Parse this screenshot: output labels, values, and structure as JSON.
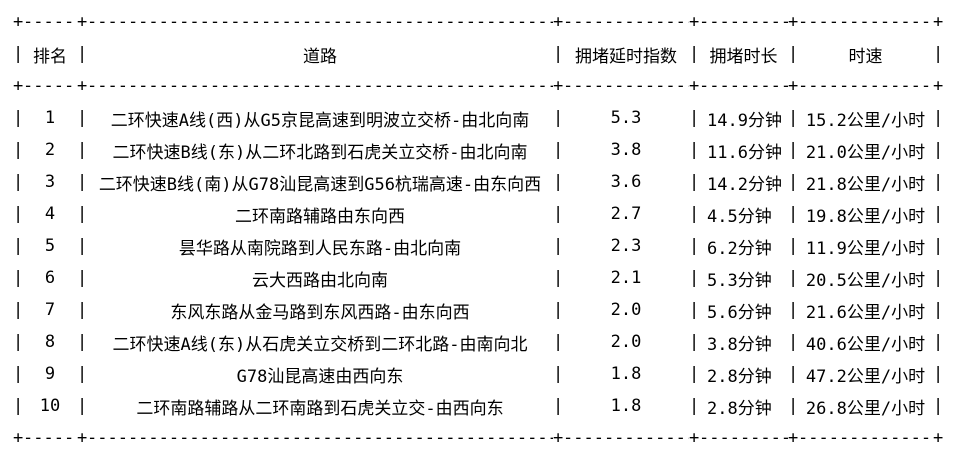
{
  "page": {
    "background": "#ffffff",
    "text_color": "#000000"
  },
  "ascii": {
    "pipe": "|",
    "cross": "+",
    "dash_fill": "------------------------------------------------------------"
  },
  "table": {
    "headers": {
      "rank": "排名",
      "road": "道路",
      "index": "拥堵延时指数",
      "duration": "拥堵时长",
      "speed": "时速"
    },
    "rows": [
      {
        "rank": "1",
        "road": "二环快速A线(西)从G5京昆高速到明波立交桥-由北向南",
        "index": "5.3",
        "duration": "14.9分钟",
        "speed": "15.2公里/小时"
      },
      {
        "rank": "2",
        "road": "二环快速B线(东)从二环北路到石虎关立交桥-由北向南",
        "index": "3.8",
        "duration": "11.6分钟",
        "speed": "21.0公里/小时"
      },
      {
        "rank": "3",
        "road": "二环快速B线(南)从G78汕昆高速到G56杭瑞高速-由东向西",
        "index": "3.6",
        "duration": "14.2分钟",
        "speed": "21.8公里/小时"
      },
      {
        "rank": "4",
        "road": "二环南路辅路由东向西",
        "index": "2.7",
        "duration": "4.5分钟",
        "speed": "19.8公里/小时"
      },
      {
        "rank": "5",
        "road": "昙华路从南院路到人民东路-由北向南",
        "index": "2.3",
        "duration": "6.2分钟",
        "speed": "11.9公里/小时"
      },
      {
        "rank": "6",
        "road": "云大西路由北向南",
        "index": "2.1",
        "duration": "5.3分钟",
        "speed": "20.5公里/小时"
      },
      {
        "rank": "7",
        "road": "东风东路从金马路到东风西路-由东向西",
        "index": "2.0",
        "duration": "5.6分钟",
        "speed": "21.6公里/小时"
      },
      {
        "rank": "8",
        "road": "二环快速A线(东)从石虎关立交桥到二环北路-由南向北",
        "index": "2.0",
        "duration": "3.8分钟",
        "speed": "40.6公里/小时"
      },
      {
        "rank": "9",
        "road": "G78汕昆高速由西向东",
        "index": "1.8",
        "duration": "2.8分钟",
        "speed": "47.2公里/小时"
      },
      {
        "rank": "10",
        "road": "二环南路辅路从二环南路到石虎关立交-由西向东",
        "index": "1.8",
        "duration": "2.8分钟",
        "speed": "26.8公里/小时"
      }
    ]
  }
}
